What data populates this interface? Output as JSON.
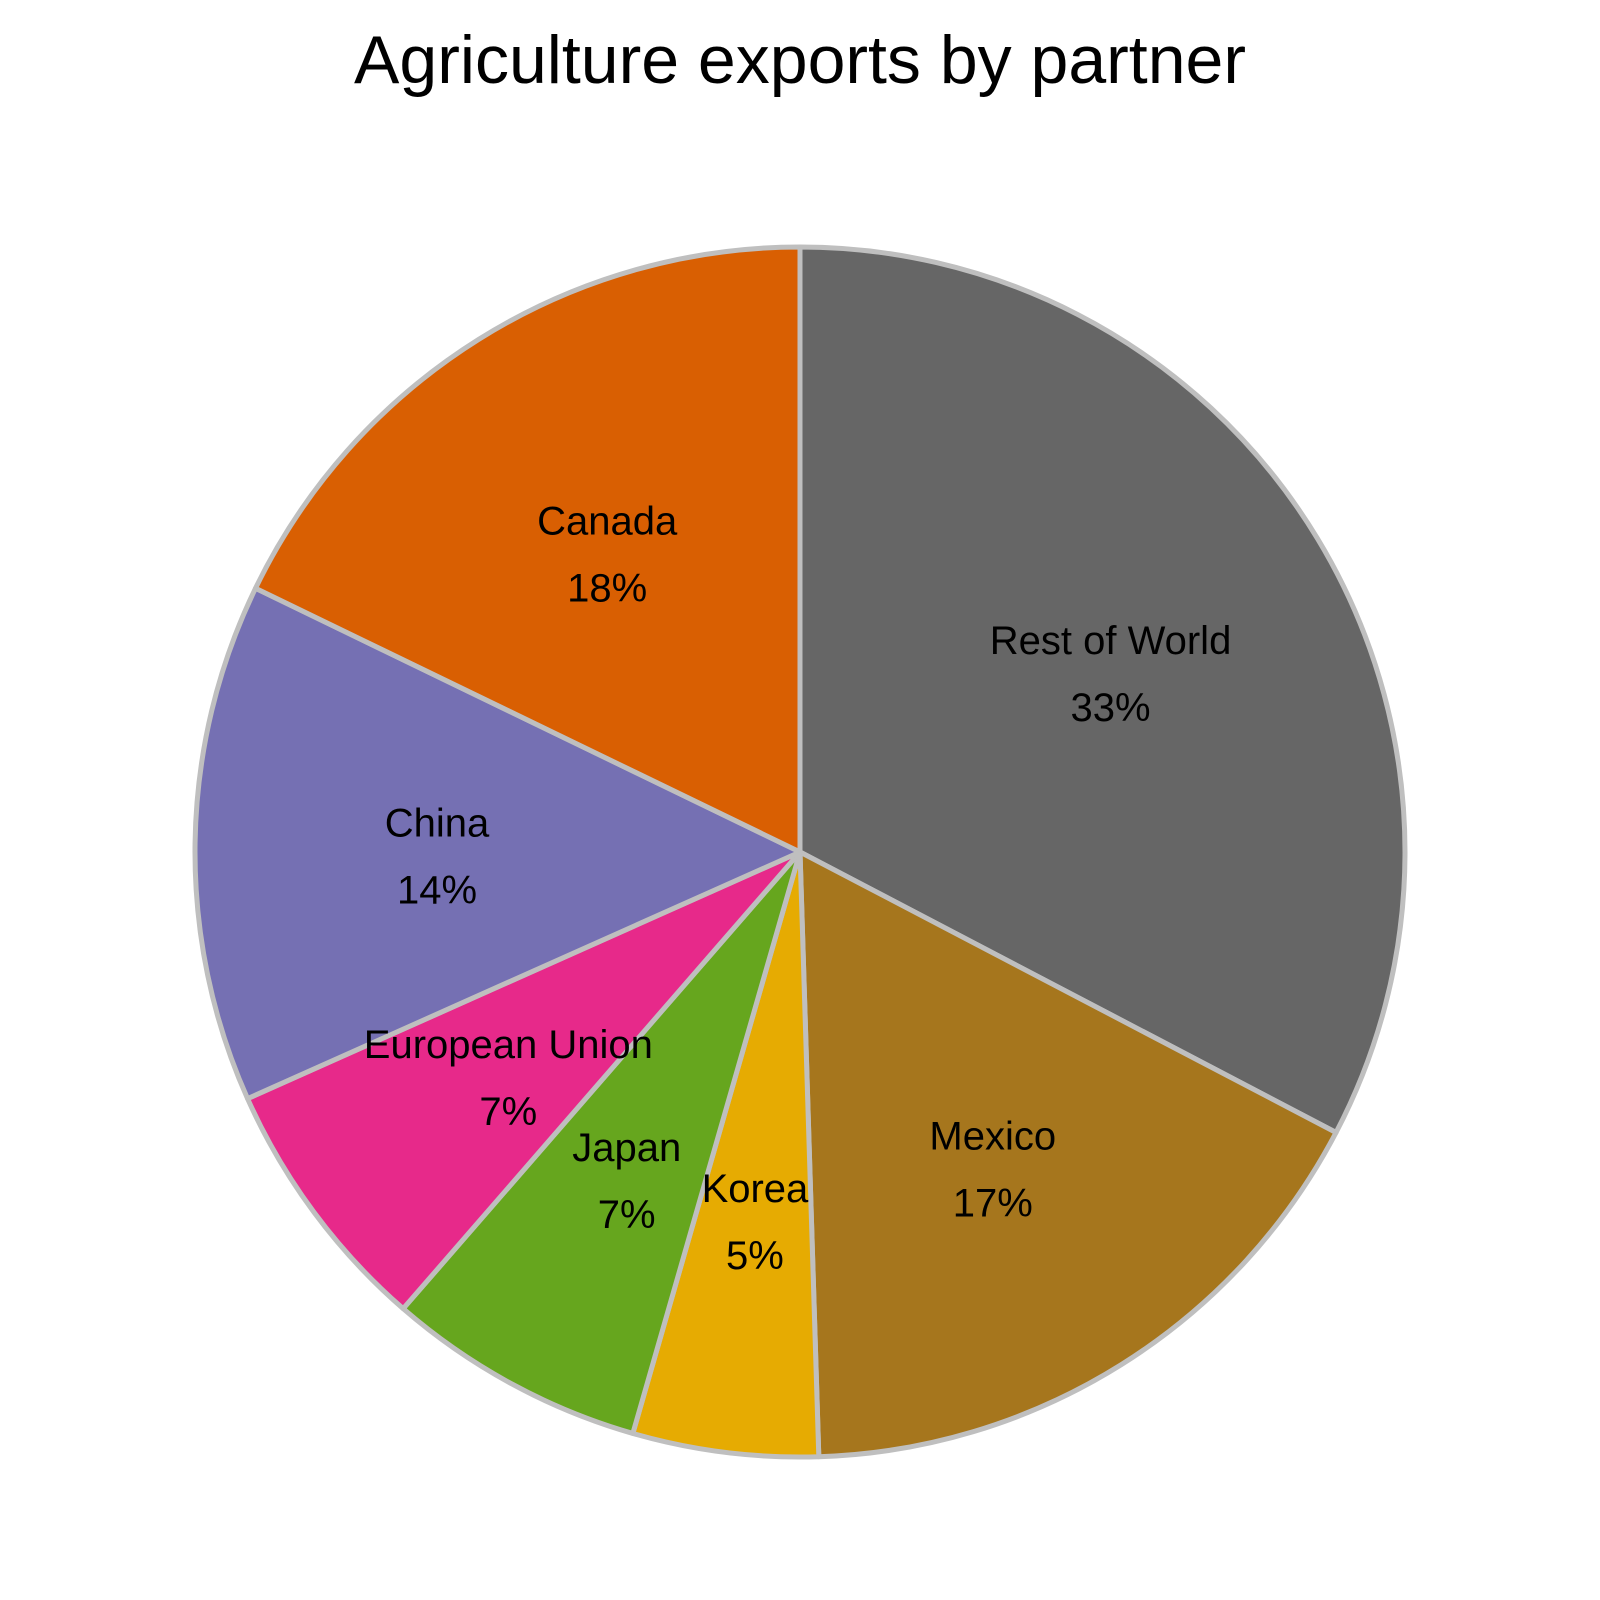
{
  "chart_data": {
    "type": "pie",
    "title": "Agriculture exports by partner",
    "start_angle_deg": 0,
    "direction": "clockwise",
    "edge_color": "#bfbfbf",
    "slices": [
      {
        "label": "Rest of World",
        "value": 33,
        "display": "33%",
        "color": "#666666"
      },
      {
        "label": "Mexico",
        "value": 17,
        "display": "17%",
        "color": "#a6761d"
      },
      {
        "label": "Korea",
        "value": 5,
        "display": "5%",
        "color": "#e6ab02"
      },
      {
        "label": "Japan",
        "value": 7,
        "display": "7%",
        "color": "#66a61e"
      },
      {
        "label": "European Union",
        "value": 7,
        "display": "7%",
        "color": "#e7298a"
      },
      {
        "label": "China",
        "value": 14,
        "display": "14%",
        "color": "#7570b3"
      },
      {
        "label": "Canada",
        "value": 18,
        "display": "18%",
        "color": "#d95f02"
      }
    ]
  }
}
